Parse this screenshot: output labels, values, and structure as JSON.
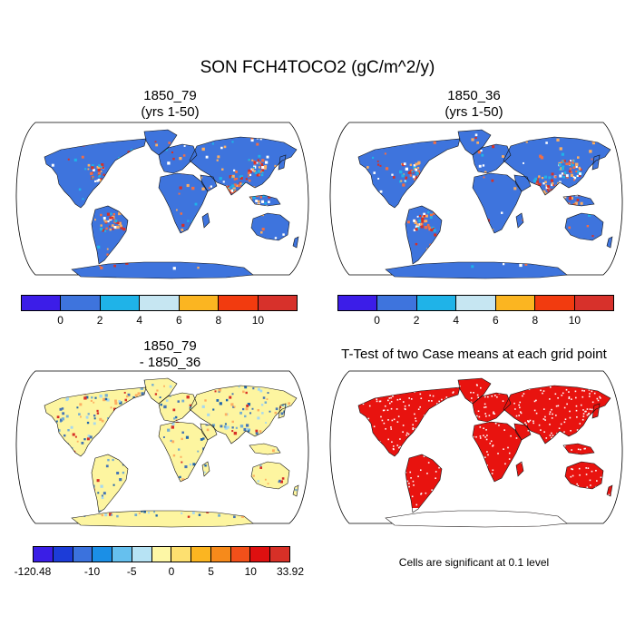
{
  "title": "SON FCH4TOCO2 (gC/m^2/y)",
  "panels": [
    {
      "id": "top-left",
      "title_line1": "1850_79",
      "title_line2": "(yrs 1-50)",
      "field_color": "#3e74dd",
      "speckle_colors": [
        "#d73027",
        "#fdae61",
        "#1fb3e8",
        "#ffffff",
        "#f46d43"
      ],
      "hotspots": "east-asia,india,east-us"
    },
    {
      "id": "top-right",
      "title_line1": "1850_36",
      "title_line2": "(yrs 1-50)",
      "field_color": "#3e74dd",
      "speckle_colors": [
        "#d73027",
        "#fdae61",
        "#1fb3e8",
        "#ffffff",
        "#f46d43"
      ],
      "hotspots": "east-asia,india,east-us"
    },
    {
      "id": "bottom-left",
      "title_line1": "1850_79",
      "title_line2": "- 1850_36",
      "field_color": "#fdf5a0",
      "speckle_colors": [
        "#a6d8f0",
        "#2166ac",
        "#d73027",
        "#4575b4",
        "#fdae61",
        "#74add1"
      ],
      "hotspots": "tropics"
    },
    {
      "id": "bottom-right",
      "title_line1": "T-Test of two Case means at each grid point",
      "title_line2": "",
      "field_color": "#e8130f",
      "speckle_colors": [
        "#ffffff"
      ],
      "hotspots": ""
    }
  ],
  "colorbar_top": {
    "colors": [
      "#3c1de8",
      "#3e74dd",
      "#1fb3e8",
      "#c6e6f2",
      "#fbb521",
      "#f23b0f",
      "#d7312b"
    ],
    "tick_labels": [
      "0",
      "2",
      "4",
      "6",
      "8",
      "10"
    ]
  },
  "colorbar_diff": {
    "colors": [
      "#3a1ee6",
      "#1c3cd8",
      "#3b72dd",
      "#1b8fe6",
      "#66c0ee",
      "#b7e3f4",
      "#fdf7a6",
      "#fde070",
      "#fbb521",
      "#f68a1b",
      "#f2501a",
      "#de1010",
      "#d73027"
    ],
    "tick_labels": [
      "-120.48",
      "-10",
      "-5",
      "0",
      "5",
      "10",
      "33.92"
    ]
  },
  "significance_note": "Cells are significant at 0.1 level"
}
